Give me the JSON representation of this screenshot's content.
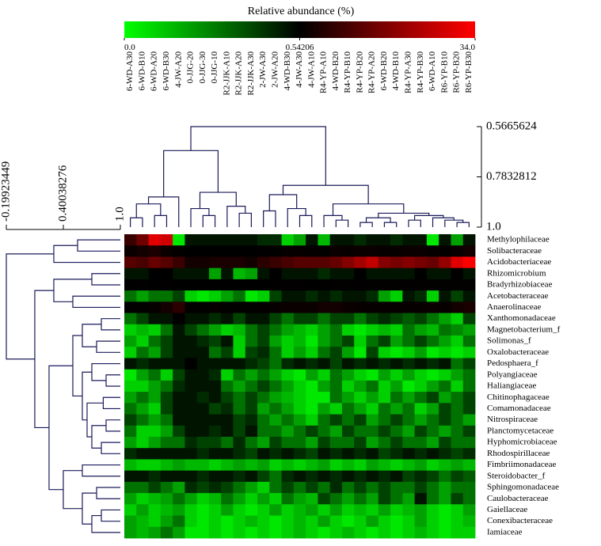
{
  "chart_data": {
    "type": "heatmap",
    "title": "Relative abundance (%)",
    "colors": [
      "#00ff00",
      "#000000",
      "#ff0000"
    ],
    "colorbar_ticks": [
      {
        "value": 0,
        "label": "0.0"
      },
      0.54206,
      {
        "value": 34,
        "label": "34.0"
      }
    ],
    "columns": [
      "6-WD-A30",
      "6-WD-B10",
      "6-WD-A20",
      "6-WD-B30",
      "4-JW-A20",
      "0-JJG-20",
      "0-JJG-30",
      "0-JJG-10",
      "R2-JJK-A10",
      "R2-JJK-A20",
      "R2-JJK-A30",
      "2-JW-A30",
      "2-JW-A20",
      "4-WD-B30",
      "4-JW-A30",
      "4-JW-A10",
      "R4-YP-A10",
      "4-WD-B20",
      "R4-YP-B10",
      "R4-YP-B20",
      "R4-YP-A20",
      "6-WD-B20",
      "4-WD-B10",
      "R4-YP-A30",
      "R4-YP-B30",
      "6-WD-A10",
      "R6-YP-B10",
      "R6-YP-B20",
      "R6-YP-B30"
    ],
    "rows": [
      "Methylophilaceae",
      "Solibacteraceae",
      "Acidobacteriaceae",
      "Rhizomicrobium",
      "Bradyrhizobiaceae",
      "Acetobacteraceae",
      "Anaerolinaceae",
      "Xanthomonadaceae",
      "Magnetobacterium_f",
      "Solimonas_f",
      "Oxalobacteraceae",
      "Pedosphaera_f",
      "Polyangiaceae",
      "Haliangiaceae",
      "Chitinophagaceae",
      "Comamonadaceae",
      "Nitrospiraceae",
      "Planctomycetaceae",
      "Hyphomicrobiaceae",
      "Rhodospirillaceae",
      "Fimbriimonadaceae",
      "Steroidobacter_f",
      "Sphingomonadaceae",
      "Caulobacteraceae",
      "Gaiellaceae",
      "Conexibacteraceae",
      "Iamiaceae"
    ],
    "values": [
      [
        8,
        15,
        30,
        28,
        0.05,
        0.5,
        0.5,
        0.5,
        0.5,
        0.5,
        0.5,
        0.45,
        0.45,
        0.1,
        0.2,
        0.5,
        0.15,
        0.5,
        0.5,
        0.45,
        0.5,
        0.5,
        0.45,
        0.5,
        0.5,
        0.05,
        0.5,
        0.2,
        0.5
      ],
      [
        2,
        3,
        4,
        2,
        1,
        0.6,
        0.6,
        0.7,
        0.6,
        0.6,
        0.6,
        0.8,
        1,
        1.5,
        1.5,
        1,
        1,
        2,
        1.5,
        2,
        2,
        1.5,
        1.5,
        2,
        2,
        1.5,
        1,
        2,
        3
      ],
      [
        12,
        10,
        14,
        12,
        8,
        3,
        3,
        4,
        4,
        4,
        3,
        6,
        8,
        10,
        12,
        12,
        12,
        14,
        18,
        22,
        26,
        18,
        16,
        18,
        16,
        14,
        20,
        30,
        34
      ],
      [
        0.5,
        0.5,
        0.55,
        0.55,
        0.5,
        0.5,
        0.5,
        0.2,
        0.5,
        0.15,
        0.2,
        0.5,
        0.55,
        0.5,
        0.5,
        0.5,
        0.45,
        0.5,
        0.5,
        0.55,
        0.5,
        0.5,
        0.5,
        0.5,
        0.55,
        0.5,
        0.5,
        0.55,
        0.5
      ],
      [
        0.7,
        0.8,
        0.7,
        0.8,
        0.7,
        0.6,
        0.6,
        0.6,
        0.6,
        0.7,
        0.6,
        0.7,
        0.7,
        0.8,
        0.8,
        0.7,
        0.7,
        0.8,
        0.9,
        0.8,
        0.8,
        0.9,
        0.9,
        0.8,
        0.9,
        1.0,
        0.8,
        0.9,
        0.9
      ],
      [
        0.3,
        0.2,
        0.3,
        0.3,
        0.4,
        0.1,
        0.05,
        0.1,
        0.2,
        0.3,
        0.05,
        0.1,
        0.4,
        0.5,
        0.5,
        0.45,
        0.5,
        0.45,
        0.5,
        0.5,
        0.45,
        0.2,
        0.1,
        0.5,
        0.45,
        0.1,
        0.5,
        0.4,
        0.5
      ],
      [
        1,
        1,
        1.5,
        3,
        6,
        1,
        1,
        1.5,
        1,
        1,
        1,
        1,
        1.5,
        2,
        2,
        2,
        3,
        3,
        2,
        1.5,
        1.5,
        1.5,
        1.5,
        1.5,
        1.5,
        2,
        1.5,
        3,
        4
      ],
      [
        0.3,
        0.4,
        0.5,
        0.5,
        0.55,
        0.5,
        0.5,
        0.45,
        0.5,
        0.4,
        0.5,
        0.5,
        0.4,
        0.3,
        0.4,
        0.4,
        0.3,
        0.4,
        0.4,
        0.3,
        0.4,
        0.45,
        0.4,
        0.35,
        0.4,
        0.3,
        0.2,
        0.1,
        0.4
      ],
      [
        0.1,
        0.15,
        0.1,
        0.3,
        0.5,
        0.4,
        0.3,
        0.2,
        0.1,
        0.15,
        0.3,
        0.4,
        0.3,
        0.2,
        0.15,
        0.1,
        0.2,
        0.3,
        0.1,
        0.05,
        0.1,
        0.15,
        0.1,
        0.3,
        0.2,
        0.15,
        0.3,
        0.25,
        0.2
      ],
      [
        0.2,
        0.1,
        0.3,
        0.4,
        0.5,
        0.5,
        0.45,
        0.4,
        0.5,
        0.1,
        0.3,
        0.4,
        0.2,
        0.1,
        0.15,
        0.05,
        0.2,
        0.3,
        0.4,
        0.1,
        0.3,
        0.4,
        0.2,
        0.3,
        0.4,
        0.3,
        0.2,
        0.1,
        0.3
      ],
      [
        0.1,
        0.3,
        0.2,
        0.4,
        0.5,
        0.5,
        0.5,
        0.3,
        0.4,
        0.1,
        0.4,
        0.45,
        0.3,
        0.1,
        0.2,
        0.1,
        0.3,
        0.4,
        0.2,
        0.05,
        0.4,
        0.1,
        0.05,
        0.1,
        0.2,
        0.05,
        0.1,
        0.05,
        0.1
      ],
      [
        0.5,
        0.45,
        0.5,
        0.5,
        0.5,
        0.55,
        0.5,
        0.5,
        0.5,
        0.5,
        0.45,
        0.4,
        0.3,
        0.45,
        0.5,
        0.45,
        0.5,
        0.4,
        0.5,
        0.45,
        0.5,
        0.45,
        0.5,
        0.45,
        0.5,
        0.45,
        0.5,
        0.3,
        0.4
      ],
      [
        0.05,
        0.2,
        0.3,
        0.1,
        0.4,
        0.5,
        0.5,
        0.45,
        0.1,
        0.3,
        0.2,
        0.3,
        0.2,
        0.1,
        0.05,
        0.2,
        0.1,
        0.3,
        0.2,
        0.1,
        0.05,
        0.2,
        0.1,
        0.2,
        0.1,
        0.05,
        0.1,
        0.2,
        0.3
      ],
      [
        0.1,
        0.1,
        0.2,
        0.3,
        0.45,
        0.5,
        0.5,
        0.5,
        0.3,
        0.2,
        0.3,
        0.4,
        0.3,
        0.2,
        0.1,
        0.05,
        0.2,
        0.3,
        0.1,
        0.2,
        0.3,
        0.1,
        0.2,
        0.05,
        0.1,
        0.2,
        0.3,
        0.1,
        0.3
      ],
      [
        0.2,
        0.3,
        0.2,
        0.4,
        0.5,
        0.5,
        0.45,
        0.5,
        0.4,
        0.3,
        0.4,
        0.3,
        0.2,
        0.15,
        0.1,
        0.05,
        0.05,
        0.3,
        0.2,
        0.1,
        0.2,
        0.1,
        0.3,
        0.2,
        0.3,
        0.4,
        0.2,
        0.3,
        0.4
      ],
      [
        0.3,
        0.2,
        0.1,
        0.4,
        0.5,
        0.5,
        0.5,
        0.4,
        0.45,
        0.3,
        0.4,
        0.2,
        0.3,
        0.2,
        0.1,
        0.05,
        0.2,
        0.1,
        0.3,
        0.2,
        0.1,
        0.3,
        0.2,
        0.3,
        0.1,
        0.2,
        0.4,
        0.3,
        0.4
      ],
      [
        0.4,
        0.3,
        0.2,
        0.3,
        0.5,
        0.5,
        0.5,
        0.5,
        0.5,
        0.4,
        0.45,
        0.3,
        0.2,
        0.3,
        0.2,
        0.1,
        0.3,
        0.4,
        0.3,
        0.4,
        0.2,
        0.3,
        0.4,
        0.3,
        0.2,
        0.3,
        0.4,
        0.3,
        0.2
      ],
      [
        0.3,
        0.1,
        0.1,
        0.2,
        0.4,
        0.5,
        0.5,
        0.45,
        0.5,
        0.4,
        0.5,
        0.3,
        0.3,
        0.2,
        0.3,
        0.4,
        0.3,
        0.2,
        0.4,
        0.3,
        0.3,
        0.4,
        0.3,
        0.2,
        0.4,
        0.3,
        0.2,
        0.3,
        0.4
      ],
      [
        0.2,
        0.1,
        0.2,
        0.3,
        0.3,
        0.45,
        0.4,
        0.4,
        0.3,
        0.45,
        0.3,
        0.2,
        0.4,
        0.3,
        0.3,
        0.2,
        0.4,
        0.3,
        0.3,
        0.4,
        0.2,
        0.3,
        0.4,
        0.3,
        0.3,
        0.2,
        0.4,
        0.3,
        0.3
      ],
      [
        0.45,
        0.5,
        0.5,
        0.5,
        0.5,
        0.5,
        0.45,
        0.5,
        0.5,
        0.45,
        0.4,
        0.5,
        0.45,
        0.5,
        0.45,
        0.4,
        0.5,
        0.45,
        0.5,
        0.45,
        0.5,
        0.4,
        0.45,
        0.5,
        0.45,
        0.5,
        0.45,
        0.4,
        0.45
      ],
      [
        0.15,
        0.1,
        0.1,
        0.15,
        0.2,
        0.15,
        0.15,
        0.1,
        0.15,
        0.2,
        0.15,
        0.2,
        0.1,
        0.15,
        0.1,
        0.15,
        0.2,
        0.1,
        0.15,
        0.1,
        0.2,
        0.15,
        0.1,
        0.15,
        0.2,
        0.1,
        0.15,
        0.2,
        0.15
      ],
      [
        0.5,
        0.5,
        0.45,
        0.5,
        0.5,
        0.5,
        0.45,
        0.5,
        0.5,
        0.45,
        0.5,
        0.4,
        0.3,
        0.45,
        0.5,
        0.45,
        0.5,
        0.45,
        0.5,
        0.45,
        0.5,
        0.45,
        0.5,
        0.4,
        0.45,
        0.4,
        0.3,
        0.4,
        0.35
      ],
      [
        0.3,
        0.3,
        0.4,
        0.3,
        0.2,
        0.45,
        0.4,
        0.45,
        0.4,
        0.3,
        0.2,
        0.1,
        0.3,
        0.4,
        0.3,
        0.4,
        0.3,
        0.45,
        0.3,
        0.4,
        0.3,
        0.4,
        0.3,
        0.3,
        0.4,
        0.3,
        0.2,
        0.3,
        0.3
      ],
      [
        0.2,
        0.1,
        0.15,
        0.2,
        0.3,
        0.2,
        0.1,
        0.15,
        0.3,
        0.2,
        0.1,
        0.2,
        0.1,
        0.3,
        0.2,
        0.15,
        0.4,
        0.3,
        0.2,
        0.3,
        0.2,
        0.4,
        0.3,
        0.2,
        0.5,
        0.3,
        0.2,
        0.4,
        0.3
      ],
      [
        0.1,
        0.2,
        0.1,
        0.15,
        0.2,
        0.1,
        0.05,
        0.1,
        0.2,
        0.1,
        0.05,
        0.1,
        0.2,
        0.1,
        0.15,
        0.2,
        0.1,
        0.2,
        0.1,
        0.15,
        0.1,
        0.2,
        0.1,
        0.15,
        0.2,
        0.1,
        0.05,
        0.1,
        0.2
      ],
      [
        0.2,
        0.15,
        0.1,
        0.2,
        0.3,
        0.1,
        0.05,
        0.1,
        0.05,
        0.1,
        0.15,
        0.1,
        0.05,
        0.1,
        0.15,
        0.1,
        0.2,
        0.1,
        0.05,
        0.1,
        0.2,
        0.1,
        0.05,
        0.1,
        0.2,
        0.1,
        0.05,
        0.1,
        0.15
      ],
      [
        0.2,
        0.15,
        0.2,
        0.3,
        0.2,
        0.05,
        0.05,
        0.1,
        0.05,
        0.1,
        0.05,
        0.1,
        0.05,
        0.1,
        0.15,
        0.1,
        0.05,
        0.1,
        0.15,
        0.1,
        0.05,
        0.1,
        0.05,
        0.1,
        0.15,
        0.1,
        0.05,
        0.1,
        0.1
      ]
    ],
    "column_tree_lim": [
      0.5665624,
      1
    ],
    "column_tree_ticks": [
      0.5665624,
      0.7832812,
      {
        "value": 1,
        "label": "1.0"
      }
    ],
    "column_tree": [
      [
        [
          [
            [
              0,
              1,
              0.96
            ],
            [
              2,
              3,
              0.95
            ],
            0.9
          ],
          4,
          0.87
        ],
        [
          [
            5,
            [
              6,
              7,
              0.95
            ],
            0.92
          ],
          [
            8,
            [
              9,
              10,
              0.94
            ],
            0.91
          ],
          0.85
        ],
        0.67
      ],
      [
        [
          [
            11,
            12,
            0.93
          ],
          [
            13,
            [
              14,
              15,
              0.95
            ],
            0.92
          ],
          0.86
        ],
        [
          [
            16,
            [
              17,
              18,
              0.97
            ],
            0.95
          ],
          [
            [
              [
                19,
                20,
                0.98
              ],
              [
                21,
                22,
                0.98
              ],
              0.96
            ],
            [
              [
                23,
                24,
                0.97
              ],
              [
                25,
                [
                  26,
                  [
                    27,
                    28,
                    0.98
                  ],
                  0.97
                ],
                0.96
              ],
              0.95
            ],
            0.94
          ],
          0.9
        ],
        0.82
      ],
      0.5665624
    ],
    "row_tree_lim": [
      -0.19923449,
      1
    ],
    "row_tree_ticks": [
      -0.19923449,
      0.40038276,
      {
        "value": 1,
        "label": "1.0"
      }
    ],
    "row_tree": [
      [
        [
          0,
          1,
          0.55
        ],
        2,
        0.3
      ],
      [
        [
          [
            3,
            4,
            0.7
          ],
          [
            5,
            6,
            0.5
          ],
          0.3
        ],
        [
          [
            [
              [
                7,
                8,
                0.8
              ],
              [
                9,
                10,
                0.75
              ],
              0.6
            ],
            [
              [
                11,
                [
                  12,
                  13,
                  0.85
                ],
                0.7
              ],
              [
                [
                  14,
                  15,
                  0.82
                ],
                [
                  [
                    16,
                    17,
                    0.85
                  ],
                  [
                    18,
                    19,
                    0.8
                  ],
                  0.7
                ],
                0.65
              ],
              0.6
            ],
            0.5
          ],
          [
            [
              20,
              21,
              0.6
            ],
            [
              [
                22,
                23,
                0.75
              ],
              [
                [
                  24,
                  25,
                  0.8
                ],
                26,
                0.7
              ],
              0.6
            ],
            0.4
          ],
          0.25
        ],
        0.1
      ],
      -0.19923449
    ]
  }
}
